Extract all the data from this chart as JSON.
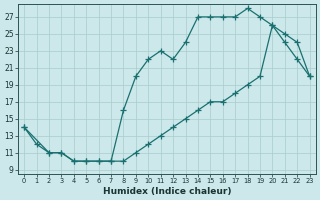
{
  "xlabel": "Humidex (Indice chaleur)",
  "bg_color": "#cce8ea",
  "grid_color": "#a8cccc",
  "line_color": "#1a7070",
  "xlim": [
    -0.5,
    23.5
  ],
  "ylim": [
    8.5,
    28.5
  ],
  "xticks": [
    0,
    1,
    2,
    3,
    4,
    5,
    6,
    7,
    8,
    9,
    10,
    11,
    12,
    13,
    14,
    15,
    16,
    17,
    18,
    19,
    20,
    21,
    22,
    23
  ],
  "yticks": [
    9,
    11,
    13,
    15,
    17,
    19,
    21,
    23,
    25,
    27
  ],
  "line1_x": [
    0,
    1,
    2,
    3,
    4,
    5,
    6,
    7,
    8,
    9,
    10,
    11,
    12,
    13,
    14,
    15,
    16,
    17,
    18,
    19,
    20,
    21,
    22,
    23
  ],
  "line1_y": [
    14,
    12,
    11,
    11,
    10,
    10,
    10,
    10,
    16,
    20,
    22,
    23,
    22,
    24,
    27,
    27,
    27,
    27,
    28,
    27,
    26,
    24,
    22,
    20
  ],
  "line2_x": [
    0,
    2,
    3,
    4,
    5,
    6,
    7,
    8,
    9,
    10,
    11,
    12,
    13,
    14,
    15,
    16,
    17,
    18,
    19,
    20,
    21,
    22,
    23
  ],
  "line2_y": [
    14,
    11,
    11,
    10,
    10,
    10,
    10,
    10,
    11,
    12,
    13,
    14,
    15,
    16,
    17,
    17,
    18,
    19,
    20,
    26,
    25,
    24,
    20
  ]
}
